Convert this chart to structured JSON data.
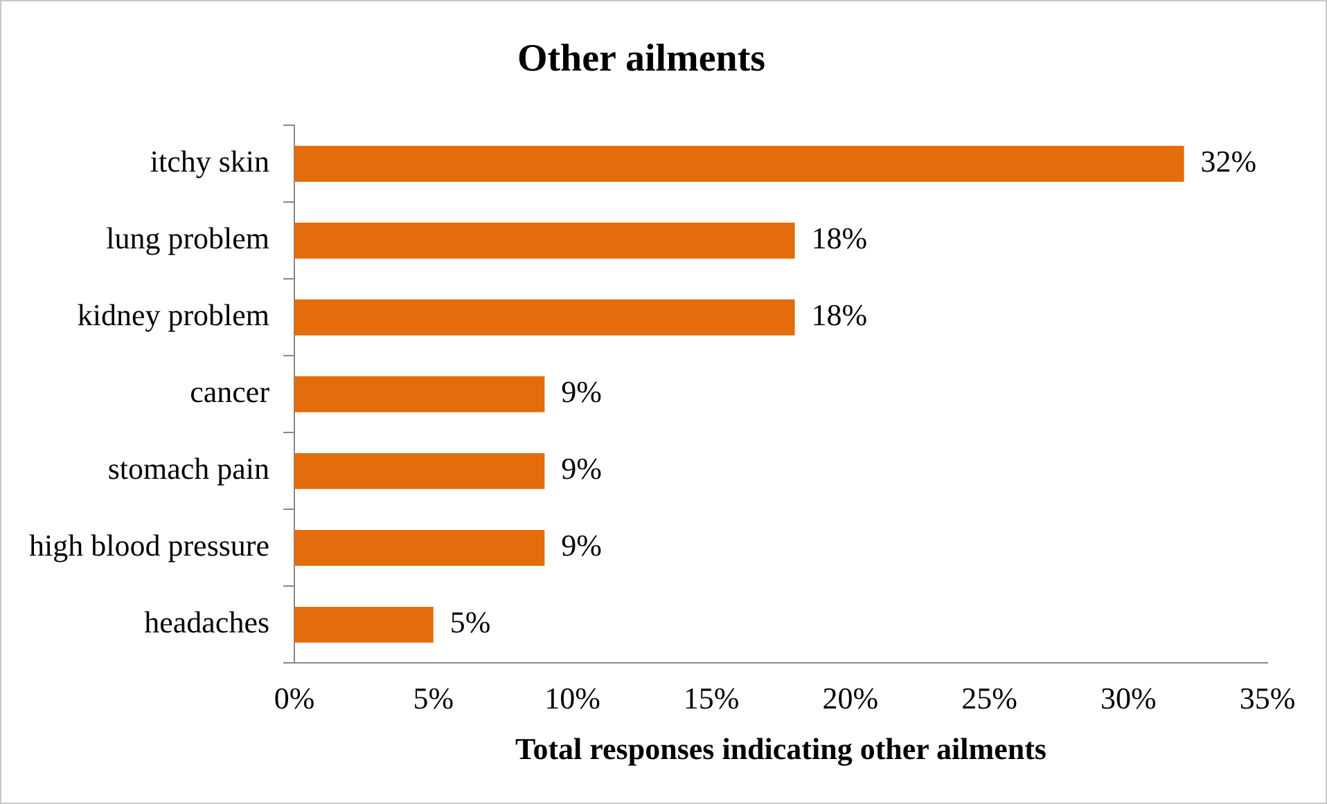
{
  "chart_data": {
    "type": "bar",
    "orientation": "horizontal",
    "title": "Other ailments",
    "xlabel": "Total responses indicating other ailments",
    "categories": [
      "itchy skin",
      "lung problem",
      "kidney problem",
      "cancer",
      "stomach pain",
      "high blood pressure",
      "headaches"
    ],
    "values": [
      32,
      18,
      18,
      9,
      9,
      9,
      5
    ],
    "value_labels": [
      "32%",
      "18%",
      "18%",
      "9%",
      "9%",
      "9%",
      "5%"
    ],
    "color": "#e46c0a",
    "xlim": [
      0,
      35
    ],
    "xticks": [
      {
        "value": 0,
        "label": "0%"
      },
      {
        "value": 5,
        "label": "5%"
      },
      {
        "value": 10,
        "label": "10%"
      },
      {
        "value": 15,
        "label": "15%"
      },
      {
        "value": 20,
        "label": "20%"
      },
      {
        "value": 25,
        "label": "25%"
      },
      {
        "value": 30,
        "label": "30%"
      },
      {
        "value": 35,
        "label": "35%"
      }
    ],
    "grid": false,
    "legend": false
  }
}
